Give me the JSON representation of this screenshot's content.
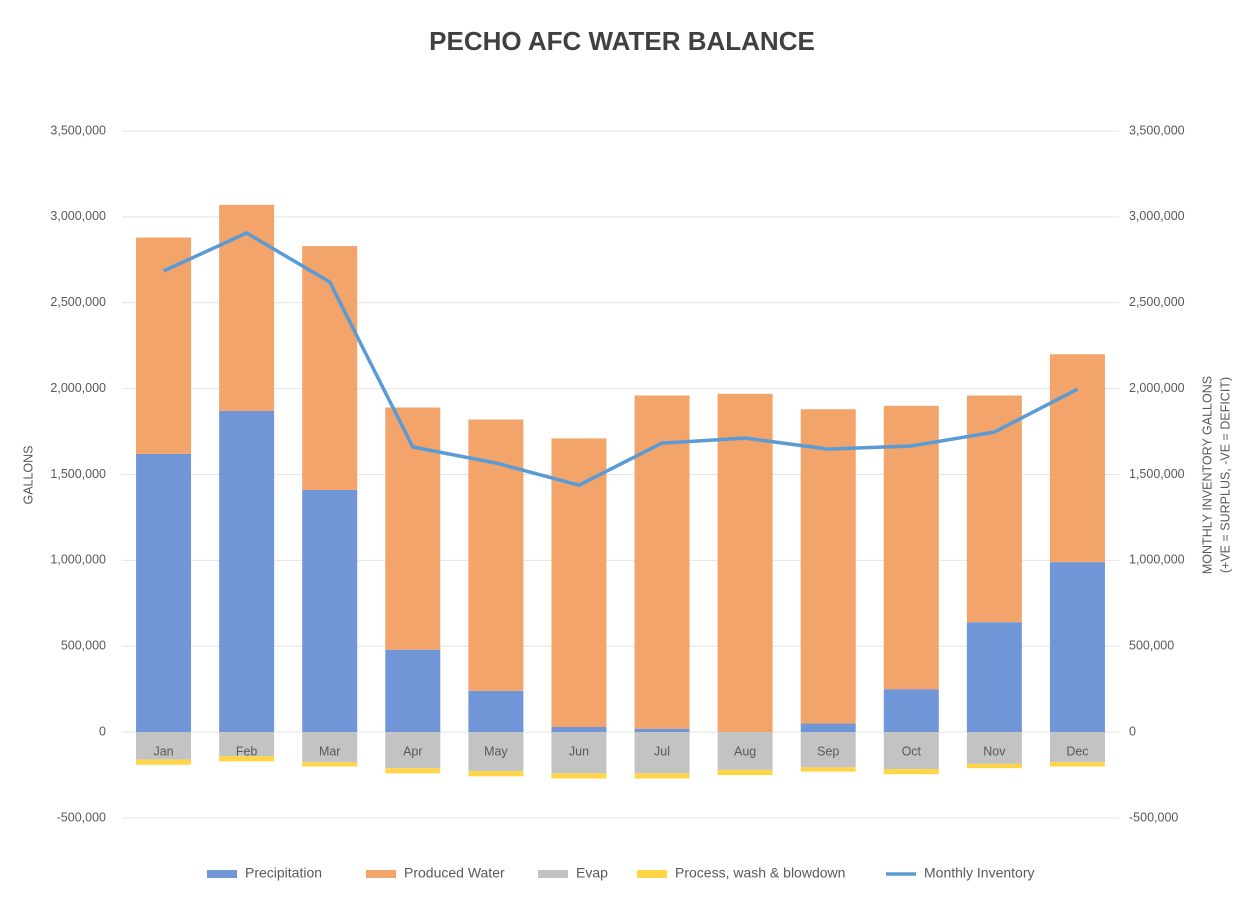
{
  "chart_data": {
    "type": "stacked_bar_line",
    "title": "PECHO AFC WATER BALANCE",
    "y_label": "GALLONS",
    "y2_label": [
      "MONTHLY INVENTORY GALLONS",
      "(+VE = SURPLUS, -VE = DEFICIT)"
    ],
    "categories": [
      "Jan",
      "Feb",
      "Mar",
      "Apr",
      "May",
      "Jun",
      "Jul",
      "Aug",
      "Sep",
      "Oct",
      "Nov",
      "Dec"
    ],
    "series": [
      {
        "name": "Precipitation",
        "color": "#7096d8",
        "values": [
          1620000,
          1870000,
          1410000,
          480000,
          240000,
          30000,
          20000,
          0,
          50000,
          250000,
          640000,
          990000
        ]
      },
      {
        "name": "Produced Water",
        "color": "#f2a46a",
        "values": [
          1260000,
          1200000,
          1420000,
          1410000,
          1580000,
          1680000,
          1940000,
          1970000,
          1830000,
          1650000,
          1320000,
          1210000
        ]
      },
      {
        "name": "Evap",
        "color": "#c3c3c3",
        "values": [
          -160000,
          -140000,
          -175000,
          -210000,
          -227000,
          -240000,
          -240000,
          -220000,
          -205000,
          -215000,
          -185000,
          -175000
        ]
      },
      {
        "name": "Process, wash & blowdown",
        "color": "#ffd447",
        "values": [
          -30000,
          -30000,
          -25000,
          -30000,
          -30000,
          -30000,
          -30000,
          -30000,
          -25000,
          -30000,
          -25000,
          -25000
        ]
      },
      {
        "name": "Monthly Inventory",
        "color": "#5b9bd5",
        "type": "line",
        "axis": "y2",
        "values": [
          2685000,
          2906000,
          2621000,
          1660000,
          1567000,
          1438000,
          1683000,
          1712000,
          1648000,
          1666000,
          1747000,
          1997000
        ]
      }
    ],
    "ylim": [
      -500000,
      3500000
    ],
    "yticks": [
      {
        "value": -500000,
        "label": "-500,000"
      },
      0,
      {
        "value": 500000,
        "label": "500,000"
      },
      {
        "value": 1000000,
        "label": "1,000,000"
      },
      {
        "value": 1500000,
        "label": "1,500,000"
      },
      {
        "value": 2000000,
        "label": "2,000,000"
      },
      {
        "value": 2500000,
        "label": "2,500,000"
      },
      {
        "value": 3000000,
        "label": "3,000,000"
      },
      {
        "value": 3500000,
        "label": "3,500,000"
      }
    ],
    "y2lim": [
      -500000,
      3500000
    ],
    "y2ticks": [
      {
        "value": -500000,
        "label": "-500,000"
      },
      0,
      {
        "value": 500000,
        "label": "500,000"
      },
      {
        "value": 1000000,
        "label": "1,000,000"
      },
      {
        "value": 1500000,
        "label": "1,500,000"
      },
      {
        "value": 2000000,
        "label": "2,000,000"
      },
      {
        "value": 2500000,
        "label": "2,500,000"
      },
      {
        "value": 3000000,
        "label": "3,000,000"
      },
      {
        "value": 3500000,
        "label": "3,500,000"
      }
    ],
    "grid": true,
    "legend": "bottom"
  }
}
